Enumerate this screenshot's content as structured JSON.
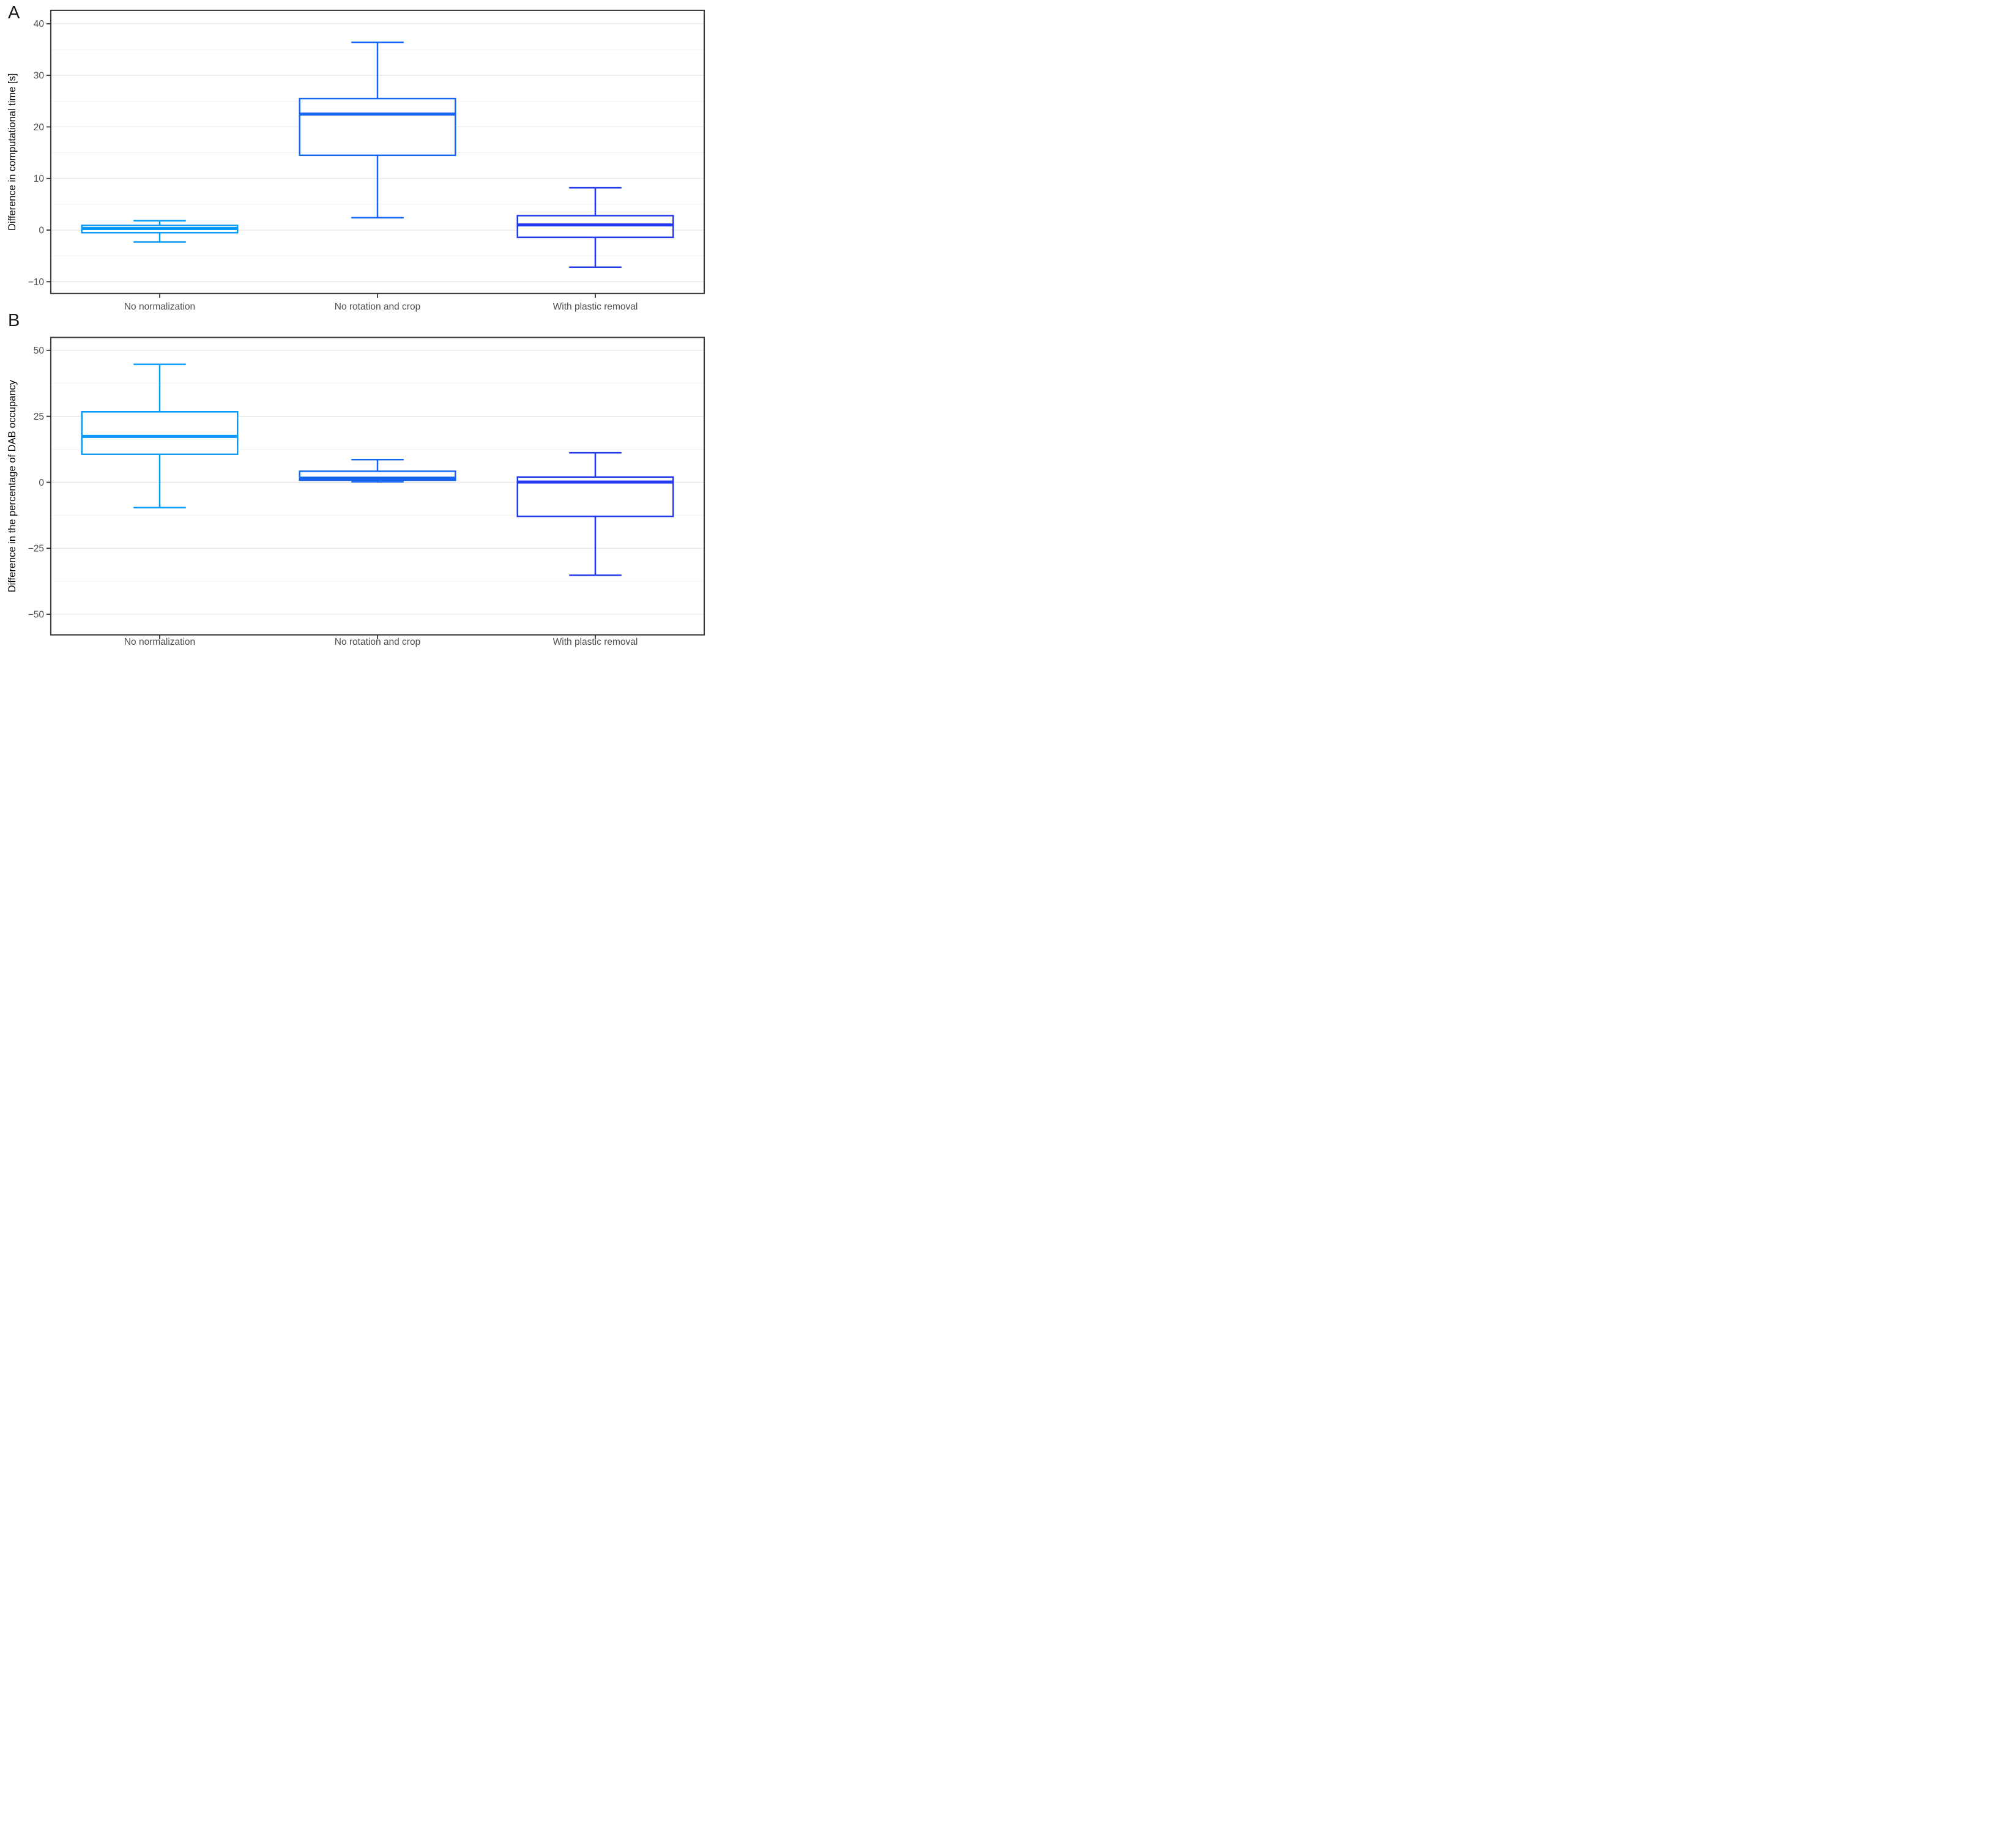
{
  "styles": {
    "background": "#FFFFFF",
    "plot_background": "#FFFFFF",
    "panel_border_color": "#3A3A3A",
    "tick_color": "#333333",
    "axis_text_color": "#4D4D4D",
    "axis_title_color": "#000000",
    "gridline_major_color": "#E6E6E6",
    "gridline_minor_color": "#F1F1F1",
    "box_fill": "#FFFFFF"
  },
  "chart_data": [
    {
      "type": "boxplot",
      "panel_label": "A",
      "ylabel": "Difference in computational time [s]",
      "xlabel": "",
      "grid": true,
      "legend": "none",
      "categories": [
        "No normalization",
        "No rotation and crop",
        "With plastic removal"
      ],
      "y_ticks": [
        -10,
        0,
        10,
        20,
        30,
        40
      ],
      "y_tick_labels": [
        "−10",
        "0",
        "10",
        "20",
        "30",
        "40"
      ],
      "ylim": [
        -12.3,
        42.6
      ],
      "boxes": [
        {
          "category": "No normalization",
          "color": "#089BF9",
          "whisker_low": -2.3,
          "q1": -0.5,
          "median": 0.3,
          "q3": 0.9,
          "whisker_high": 1.8
        },
        {
          "category": "No rotation and crop",
          "color": "#1565F4",
          "whisker_low": 2.4,
          "q1": 14.5,
          "median": 22.5,
          "q3": 25.5,
          "whisker_high": 36.4
        },
        {
          "category": "With plastic removal",
          "color": "#2239EF",
          "whisker_low": -7.2,
          "q1": -1.4,
          "median": 1.0,
          "q3": 2.8,
          "whisker_high": 8.2
        }
      ]
    },
    {
      "type": "boxplot",
      "panel_label": "B",
      "ylabel": "Difference in the percentage of DAB occupancy",
      "xlabel": "",
      "grid": true,
      "legend": "none",
      "categories": [
        "No normalization",
        "No rotation and crop",
        "With plastic removal"
      ],
      "y_ticks": [
        -50,
        -25,
        0,
        25,
        50
      ],
      "y_tick_labels": [
        "−50",
        "−25",
        "0",
        "25",
        "50"
      ],
      "ylim": [
        -57.8,
        54.9
      ],
      "boxes": [
        {
          "category": "No normalization",
          "color": "#089BF9",
          "whisker_low": -9.6,
          "q1": 10.6,
          "median": 17.4,
          "q3": 26.7,
          "whisker_high": 44.7
        },
        {
          "category": "No rotation and crop",
          "color": "#1565F4",
          "whisker_low": 0.2,
          "q1": 0.8,
          "median": 1.6,
          "q3": 4.2,
          "whisker_high": 8.6
        },
        {
          "category": "With plastic removal",
          "color": "#2239EF",
          "whisker_low": -35.2,
          "q1": -12.9,
          "median": 0.1,
          "q3": 2.0,
          "whisker_high": 11.2
        }
      ]
    }
  ]
}
